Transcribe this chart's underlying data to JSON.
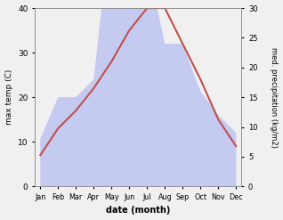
{
  "months": [
    "Jan",
    "Feb",
    "Mar",
    "Apr",
    "May",
    "Jun",
    "Jul",
    "Aug",
    "Sep",
    "Oct",
    "Nov",
    "Dec"
  ],
  "temperature": [
    7,
    13,
    17,
    22,
    28,
    35,
    40,
    40,
    32,
    24,
    15,
    9
  ],
  "precipitation": [
    8,
    15,
    15,
    18,
    45,
    41,
    38,
    24,
    24,
    16,
    12,
    9
  ],
  "temp_ylim": [
    0,
    40
  ],
  "precip_ylim": [
    0,
    30
  ],
  "temp_color": "#c0504d",
  "precip_fill_color": "#c5caf0",
  "ylabel_left": "max temp (C)",
  "ylabel_right": "med. precipitation (kg/m2)",
  "xlabel": "date (month)",
  "left_ticks": [
    0,
    10,
    20,
    30,
    40
  ],
  "right_ticks": [
    0,
    5,
    10,
    15,
    20,
    25,
    30
  ],
  "bg_color": "#f0f0f0"
}
